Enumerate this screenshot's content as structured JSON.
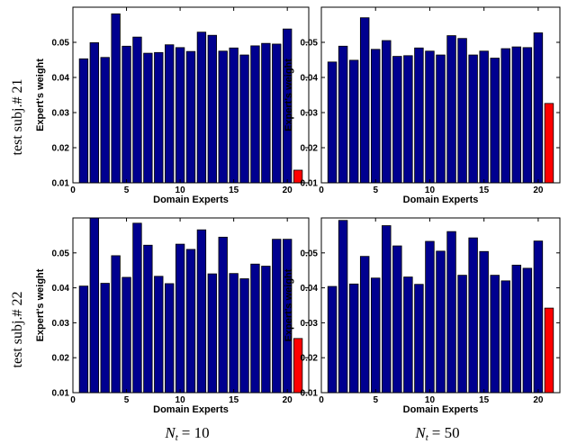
{
  "row_labels": [
    "test subj.# 21",
    "test subj.# 22"
  ],
  "column_labels": [
    {
      "symbol": "N",
      "subscript": "t",
      "value": "= 10"
    },
    {
      "symbol": "N",
      "subscript": "t",
      "value": "= 50"
    }
  ],
  "colors": {
    "domain_bar": "#00008f",
    "last_bar": "#ff0000",
    "bar_edge": "#000000"
  },
  "chart_data": [
    {
      "type": "bar",
      "xlabel": "Domain Experts",
      "ylabel": "Expert's weight",
      "ylim": [
        0.01,
        0.06
      ],
      "xlim": [
        0,
        22
      ],
      "xticks": [
        "0",
        "5",
        "10",
        "15",
        "20"
      ],
      "yticks": [
        "0.01",
        "0.02",
        "0.03",
        "0.04",
        "0.05"
      ],
      "x": [
        1,
        2,
        3,
        4,
        5,
        6,
        7,
        8,
        9,
        10,
        11,
        12,
        13,
        14,
        15,
        16,
        17,
        18,
        19,
        20,
        21
      ],
      "values": [
        0.0453,
        0.0499,
        0.0457,
        0.0581,
        0.0489,
        0.0515,
        0.0469,
        0.0471,
        0.0493,
        0.0485,
        0.0474,
        0.0529,
        0.052,
        0.0475,
        0.0484,
        0.0464,
        0.049,
        0.0497,
        0.0495,
        0.0538,
        0.0136
      ]
    },
    {
      "type": "bar",
      "xlabel": "Domain Experts",
      "ylabel": "Expert's weight",
      "ylim": [
        0.01,
        0.06
      ],
      "xlim": [
        0,
        22
      ],
      "xticks": [
        "0",
        "5",
        "10",
        "15",
        "20"
      ],
      "yticks": [
        "0.01",
        "0.02",
        "0.03",
        "0.04",
        "0.05"
      ],
      "x": [
        1,
        2,
        3,
        4,
        5,
        6,
        7,
        8,
        9,
        10,
        11,
        12,
        13,
        14,
        15,
        16,
        17,
        18,
        19,
        20,
        21
      ],
      "values": [
        0.0444,
        0.0489,
        0.0449,
        0.057,
        0.048,
        0.0505,
        0.046,
        0.0462,
        0.0484,
        0.0475,
        0.0464,
        0.0519,
        0.0511,
        0.0464,
        0.0475,
        0.0455,
        0.0482,
        0.0487,
        0.0485,
        0.0527,
        0.0326
      ]
    },
    {
      "type": "bar",
      "xlabel": "Domain Experts",
      "ylabel": "Expert's weight",
      "ylim": [
        0.01,
        0.06
      ],
      "xlim": [
        0,
        22
      ],
      "xticks": [
        "0",
        "5",
        "10",
        "15",
        "20"
      ],
      "yticks": [
        "0.01",
        "0.02",
        "0.03",
        "0.04",
        "0.05"
      ],
      "x": [
        1,
        2,
        3,
        4,
        5,
        6,
        7,
        8,
        9,
        10,
        11,
        12,
        13,
        14,
        15,
        16,
        17,
        18,
        19,
        20,
        21
      ],
      "values": [
        0.0405,
        0.0601,
        0.0413,
        0.0492,
        0.043,
        0.0585,
        0.0522,
        0.0433,
        0.0412,
        0.0525,
        0.051,
        0.0566,
        0.044,
        0.0545,
        0.0441,
        0.0426,
        0.0468,
        0.0462,
        0.0539,
        0.0539,
        0.0255
      ]
    },
    {
      "type": "bar",
      "xlabel": "Domain Experts",
      "ylabel": "Expert's weight",
      "ylim": [
        0.01,
        0.06
      ],
      "xlim": [
        0,
        22
      ],
      "xticks": [
        "0",
        "5",
        "10",
        "15",
        "20"
      ],
      "yticks": [
        "0.01",
        "0.02",
        "0.03",
        "0.04",
        "0.05"
      ],
      "x": [
        1,
        2,
        3,
        4,
        5,
        6,
        7,
        8,
        9,
        10,
        11,
        12,
        13,
        14,
        15,
        16,
        17,
        18,
        19,
        20,
        21
      ],
      "values": [
        0.0404,
        0.0593,
        0.0411,
        0.049,
        0.0428,
        0.0578,
        0.052,
        0.0431,
        0.041,
        0.0533,
        0.0505,
        0.0561,
        0.0436,
        0.0543,
        0.0504,
        0.0436,
        0.042,
        0.0465,
        0.0456,
        0.0534,
        0.0342
      ]
    }
  ]
}
